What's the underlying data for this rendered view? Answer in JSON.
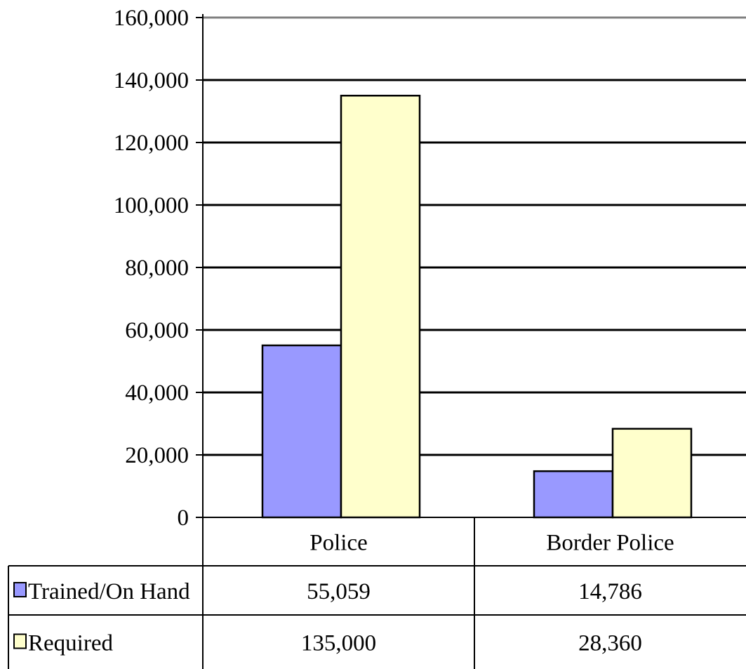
{
  "chart_data": {
    "type": "bar",
    "categories": [
      "Police",
      "Border Police"
    ],
    "series": [
      {
        "name": "Trained/On Hand",
        "values": [
          55059,
          14786
        ],
        "color": "#9999ff",
        "label_text": [
          "55,059",
          "14,786"
        ]
      },
      {
        "name": "Required",
        "values": [
          135000,
          28360
        ],
        "color": "#ffffcc",
        "label_text": [
          "135,000",
          "28,360"
        ]
      }
    ],
    "ylim": [
      0,
      160000
    ],
    "yticks": [
      0,
      20000,
      40000,
      60000,
      80000,
      100000,
      120000,
      140000,
      160000
    ],
    "ytick_labels": [
      "0",
      "20,000",
      "40,000",
      "60,000",
      "80,000",
      "100,000",
      "120,000",
      "140,000",
      "160,000"
    ],
    "grid": true,
    "legend": "data-table-rows",
    "title": "",
    "xlabel": "",
    "ylabel": ""
  }
}
